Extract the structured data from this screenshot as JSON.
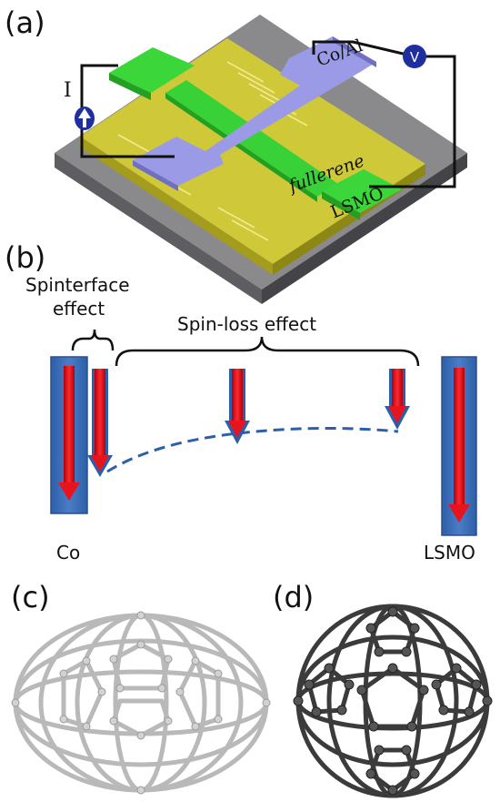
{
  "panel_a": {
    "label": "(a)",
    "current_label": "I",
    "voltmeter_symbol": "V",
    "electrode_top": "Co/Al",
    "layer": "fullerene",
    "electrode_bottom": "LSMO"
  },
  "panel_b": {
    "label": "(b)",
    "spinterface_line1": "Spinterface",
    "spinterface_line2": "effect",
    "spinloss": "Spin-loss effect",
    "left_electrode": "Co",
    "right_electrode": "LSMO"
  },
  "panel_c": {
    "label": "(c)"
  },
  "panel_d": {
    "label": "(d)"
  },
  "colors": {
    "electrode_blue": "#3f70b8",
    "spin_arrow_red": "#e8141d",
    "pad_green": "#3ad63a",
    "contact_purple": "#9a9ae6",
    "layer_olive": "#c9c235",
    "substrate_grey": "#7d7d80",
    "cage_light": "#c4c4c4",
    "cage_dark": "#3b3b3b"
  }
}
